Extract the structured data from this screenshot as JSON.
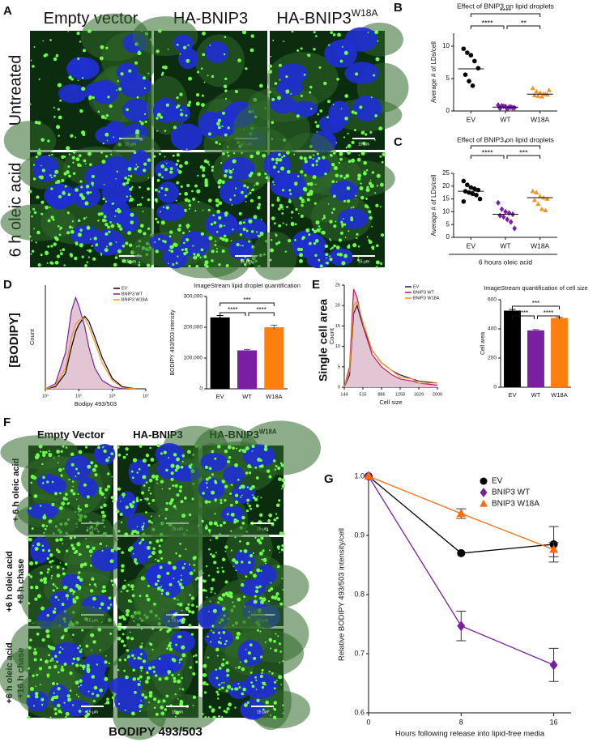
{
  "panel_labels": [
    "A",
    "B",
    "C",
    "D",
    "E",
    "F",
    "G"
  ],
  "panel_a": {
    "columns": [
      {
        "text": "Empty vector"
      },
      {
        "text": "HA-BNIP3"
      },
      {
        "text": "HA-BNIP3",
        "superscript": "W18A"
      }
    ],
    "rows": [
      "Untreated",
      "6 h oleic acid"
    ],
    "scale_bar": "15 μm"
  },
  "panel_d": {
    "side_label": "[BODIPY]"
  },
  "panel_e": {
    "side_label": "Single cell area"
  },
  "panel_f": {
    "columns": [
      {
        "text": "Empty Vector"
      },
      {
        "text": "HA-BNIP3"
      },
      {
        "text": "HA-BNIP3",
        "superscript": "W18A"
      }
    ],
    "rows": [
      [
        "+ 6 h oleic acid"
      ],
      [
        "+6 h oleic acid",
        "+8 h chase"
      ],
      [
        "+6 h oleic acid",
        "+16 h chase"
      ]
    ],
    "scale_bar": "15 μm",
    "caption": "BODIPY 493/503"
  },
  "chart_data": [
    {
      "type": "dot",
      "title": "Effect of BNIP3 on lipid droplets",
      "y_label": "Average # of LDs/cell",
      "categories": [
        "EV",
        "WT",
        "W18A"
      ],
      "groups": [
        {
          "color": "#000000",
          "marker": "circle",
          "values": [
            9.6,
            9.0,
            8.6,
            7.7,
            6.6,
            5.6,
            4.6,
            3.9
          ],
          "median": 6.5
        },
        {
          "color": "#7b1fa2",
          "marker": "diamond",
          "values": [
            0.9,
            0.8,
            0.7,
            0.6,
            0.5,
            0.4,
            0.7,
            0.3,
            0.6,
            0.5
          ],
          "median": 0.6
        },
        {
          "color": "#f7941d",
          "marker": "triangle",
          "values": [
            3.5,
            3.0,
            2.8,
            2.6,
            2.5,
            2.4,
            2.3,
            2.2,
            2.6,
            3.2
          ],
          "median": 2.6
        }
      ],
      "ylim": [
        0,
        12
      ],
      "yticks": [
        0,
        5,
        10
      ],
      "significance": [
        "****",
        "**",
        "****"
      ]
    },
    {
      "type": "dot",
      "title": "Effect of BNIP3 on lipid droplets",
      "y_label": "Average # of LDs/cell",
      "categories": [
        "EV",
        "WT",
        "W18A"
      ],
      "groups": [
        {
          "color": "#000000",
          "marker": "circle",
          "values": [
            22,
            20.5,
            19.5,
            19,
            18.5,
            18,
            17.5,
            17,
            16.5,
            15,
            14
          ],
          "median": 18
        },
        {
          "color": "#7b1fa2",
          "marker": "diamond",
          "values": [
            13.5,
            11,
            10,
            9.5,
            9,
            8.5,
            8,
            7,
            6,
            3.5
          ],
          "median": 9
        },
        {
          "color": "#f7941d",
          "marker": "triangle",
          "values": [
            18,
            17.5,
            16,
            15.5,
            15,
            14.5,
            13,
            11,
            10.5
          ],
          "median": 15.5
        }
      ],
      "ylim": [
        0,
        25
      ],
      "yticks": [
        0,
        5,
        10,
        15,
        20,
        25
      ],
      "significance": [
        "****",
        "***",
        "*"
      ],
      "x_caption": "6 hours oleic acid"
    },
    {
      "type": "density",
      "x_label": "Bodipy 493/503",
      "y_label": "Count",
      "log_x": true,
      "xlim": [
        10000,
        10000000
      ],
      "xticks": [
        {
          "value": 10000,
          "label": "10⁴"
        },
        {
          "value": 100000,
          "label": "10⁵"
        },
        {
          "value": 1000000,
          "label": "10⁶"
        },
        {
          "value": 10000000,
          "label": "10⁷"
        }
      ],
      "ylim": [
        0,
        100
      ],
      "x": [
        10000,
        20000,
        40000,
        60000,
        80000,
        100000,
        150000,
        200000,
        300000,
        500000,
        1000000,
        2000000,
        5000000
      ],
      "series": [
        {
          "name": "EV",
          "color": "#000000",
          "values": [
            0,
            2,
            15,
            40,
            55,
            62,
            70,
            65,
            50,
            30,
            10,
            2,
            0
          ]
        },
        {
          "name": "BNIP3 WT",
          "color": "#7b1fa2",
          "fill": "#e3c6d3",
          "values": [
            0,
            5,
            35,
            75,
            88,
            80,
            60,
            40,
            20,
            8,
            2,
            0,
            0
          ]
        },
        {
          "name": "BNIP3 W18A",
          "color": "#f7941d",
          "values": [
            0,
            3,
            20,
            50,
            62,
            66,
            68,
            60,
            45,
            25,
            8,
            1,
            0
          ]
        }
      ]
    },
    {
      "type": "bar",
      "title": "ImageStream lipid droplet quantification",
      "y_label": "BODIPY 493/503 intensity",
      "categories": [
        "EV",
        "WT",
        "W18A"
      ],
      "values": [
        232000,
        125000,
        200000
      ],
      "errors": [
        6000,
        3000,
        7000
      ],
      "colors": [
        "#000000",
        "#7b1fa2",
        "#ff7f0e"
      ],
      "ylim": [
        0,
        300000
      ],
      "yticks": [
        0,
        {
          "value": 100000,
          "label": "100,000"
        },
        {
          "value": 200000,
          "label": "200,000"
        },
        {
          "value": 300000,
          "label": "300,000"
        }
      ],
      "significance": [
        "****",
        "****",
        "***"
      ]
    },
    {
      "type": "density",
      "x_label": "Cell size",
      "y_label": "Count",
      "log_x": false,
      "xlim": [
        144,
        2000
      ],
      "xticks": [
        144,
        515,
        886,
        1258,
        1629,
        2000
      ],
      "ylim": [
        0,
        25
      ],
      "yticks": [
        0,
        5,
        10,
        15,
        20,
        25
      ],
      "x": [
        144,
        250,
        330,
        400,
        515,
        700,
        886,
        1100,
        1258,
        1500,
        1629,
        2000
      ],
      "series": [
        {
          "name": "EV",
          "color": "#1a1a5e",
          "values": [
            0,
            3,
            18,
            20,
            15,
            9,
            6,
            4,
            3,
            2,
            1.5,
            1
          ]
        },
        {
          "name": "BNIP3 WT",
          "color": "#c2185b",
          "fill": "#e3c6d3",
          "values": [
            0,
            5,
            24,
            22,
            15,
            8,
            5,
            3,
            2,
            1.5,
            1,
            0.5
          ]
        },
        {
          "name": "BNIP3 W18A",
          "color": "#f7941d",
          "values": [
            0,
            4,
            20,
            21,
            16,
            9,
            6,
            4,
            2.5,
            2,
            1,
            1
          ]
        }
      ]
    },
    {
      "type": "bar",
      "title": "ImageStream quantification of cell size",
      "y_label": "Cell area",
      "categories": [
        "EV",
        "WT",
        "W18A"
      ],
      "values": [
        525,
        390,
        475
      ],
      "errors": [
        8,
        6,
        5
      ],
      "colors": [
        "#000000",
        "#7b1fa2",
        "#ff7f0e"
      ],
      "ylim": [
        0,
        600
      ],
      "yticks": [
        0,
        200,
        400,
        600
      ],
      "significance": [
        "****",
        "****",
        "***"
      ]
    },
    {
      "type": "line",
      "x_label": "Hours following release into lipid-free media",
      "y_label": "Relative BODIPY 493/503 intensity/cell",
      "x": [
        0,
        8,
        16
      ],
      "xlim": [
        0,
        17.5
      ],
      "xticks": [
        0,
        8,
        16
      ],
      "ylim": [
        0.6,
        1.0
      ],
      "yticks": [
        0.6,
        0.7,
        0.8,
        0.9,
        {
          "value": 1,
          "label": "1.0"
        }
      ],
      "legend": "top-right",
      "series": [
        {
          "name": "EV",
          "color": "#000000",
          "marker": "circle",
          "values": [
            1.0,
            0.87,
            0.885
          ],
          "errors": [
            0,
            0,
            0.03
          ]
        },
        {
          "name": "BNIP3 WT",
          "color": "#7b1fa2",
          "marker": "diamond",
          "values": [
            1.0,
            0.747,
            0.681
          ],
          "errors": [
            0,
            0.025,
            0.028
          ]
        },
        {
          "name": "BNIP3 W18A",
          "color": "#ff6a13",
          "marker": "triangle",
          "values": [
            1.0,
            0.937,
            0.876
          ],
          "errors": [
            0,
            0.008,
            0.012
          ]
        }
      ]
    }
  ]
}
